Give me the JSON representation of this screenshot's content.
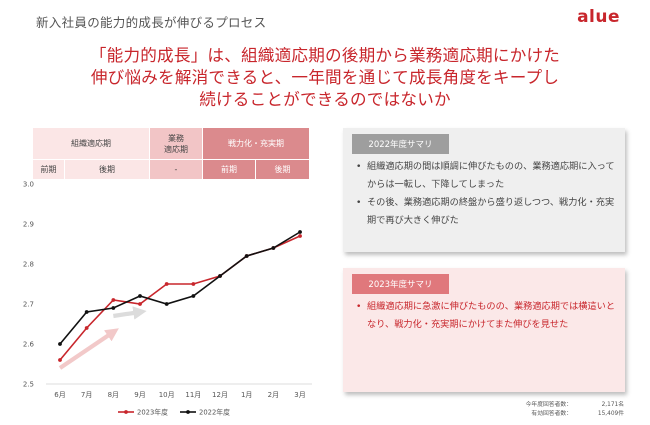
{
  "header": {
    "title": "新入社員の能力的成長が伸びるプロセス",
    "logo": "alue"
  },
  "headline": {
    "line1": "「能力的成長」は、組織適応期の後期から業務適応期にかけた",
    "line2": "伸び悩みを解消できると、一年間を通じて成長角度をキープし",
    "line3": "続けることができるのではないか"
  },
  "phases": {
    "org": "組織適応期",
    "biz_line1": "業務",
    "biz_line2": "適応期",
    "war": "戦力化・充実期",
    "org_early": "前期",
    "org_late": "後期",
    "biz_sub": "-",
    "war_early": "前期",
    "war_late": "後期"
  },
  "summary_2022": {
    "tag": "2022年度サマリ",
    "items": [
      "組織適応期の間は順調に伸びたものの、業務適応期に入ってからは一転し、下降してしまった",
      "その後、業務適応期の終盤から盛り返しつつ、戦力化・充実期で再び大きく伸びた"
    ]
  },
  "summary_2023": {
    "tag": "2023年度サマリ",
    "items": [
      "組織適応期に急激に伸びたものの、業務適応期では横這いとなり、戦力化・充実期にかけてまた伸びを見せた"
    ]
  },
  "footnote": {
    "row1_label": "今年度回答者数：",
    "row1_value": "2,171名",
    "row2_label": "有効回答者数：",
    "row2_value": "15,409件"
  },
  "chart_data": {
    "type": "line",
    "categories": [
      "6月",
      "7月",
      "8月",
      "9月",
      "10月",
      "11月",
      "12月",
      "1月",
      "2月",
      "3月"
    ],
    "ylim": [
      2.5,
      3.0
    ],
    "yticks": [
      "2.5",
      "2.6",
      "2.7",
      "2.8",
      "2.9",
      "3.0"
    ],
    "grid": false,
    "legend_position": "bottom",
    "series": [
      {
        "name": "2023年度",
        "color": "#c8262c",
        "values": [
          2.56,
          2.64,
          2.71,
          2.7,
          2.75,
          2.75,
          2.77,
          2.82,
          2.84,
          2.87
        ]
      },
      {
        "name": "2022年度",
        "color": "#111111",
        "values": [
          2.6,
          2.68,
          2.69,
          2.72,
          2.7,
          2.72,
          2.77,
          2.82,
          2.84,
          2.88
        ]
      }
    ],
    "annotations": [
      {
        "type": "arrow",
        "color": "#f2c9c9",
        "from_x": "6月",
        "from_y": 2.54,
        "to_x": "8月",
        "to_y": 2.63
      },
      {
        "type": "arrow",
        "color": "#dcdcdc",
        "from_x": "8月",
        "from_y": 2.67,
        "to_x": "9月",
        "to_y": 2.68
      }
    ]
  }
}
